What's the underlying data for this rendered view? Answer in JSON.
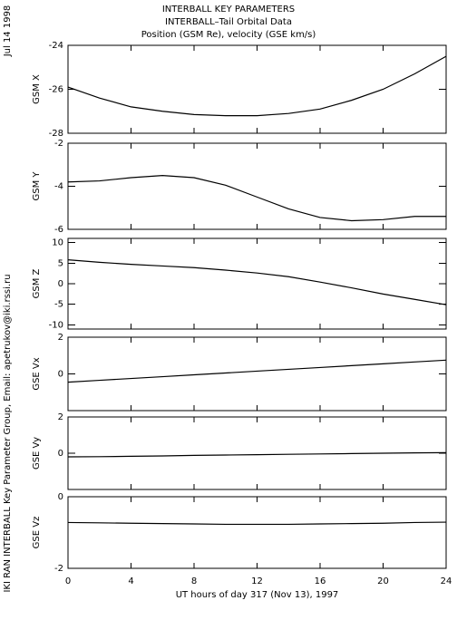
{
  "header": {
    "title": "INTERBALL KEY PARAMETERS",
    "subtitle": "INTERBALL–Tail Orbital Data",
    "subtitle2": "Position (GSM Re), velocity (GSE km/s)",
    "date": "Jul 14 1998",
    "credit": "IKI RAN INTERBALL Key Parameter Group, Email: apetrukov@iki.rssi.ru"
  },
  "chart_data": [
    {
      "type": "line",
      "y_label": "GSM X",
      "x": [
        0,
        2,
        4,
        6,
        8,
        10,
        12,
        14,
        16,
        18,
        20,
        22,
        24
      ],
      "values": [
        -25.9,
        -26.4,
        -26.8,
        -27.0,
        -27.15,
        -27.2,
        -27.2,
        -27.1,
        -26.9,
        -26.5,
        -26.0,
        -25.3,
        -24.5
      ],
      "xlim": [
        0,
        24
      ],
      "ylim": [
        -28,
        -24
      ],
      "yticks": [
        -24,
        -26,
        -28
      ]
    },
    {
      "type": "line",
      "y_label": "GSM Y",
      "x": [
        0,
        2,
        4,
        6,
        8,
        10,
        12,
        14,
        16,
        18,
        20,
        22,
        24
      ],
      "values": [
        -3.8,
        -3.75,
        -3.6,
        -3.5,
        -3.6,
        -3.95,
        -4.5,
        -5.05,
        -5.45,
        -5.6,
        -5.55,
        -5.4,
        -5.4
      ],
      "xlim": [
        0,
        24
      ],
      "ylim": [
        -6,
        -2
      ],
      "yticks": [
        -2,
        -4,
        -6
      ]
    },
    {
      "type": "line",
      "y_label": "GSM Z",
      "x": [
        0,
        2,
        4,
        6,
        8,
        10,
        12,
        14,
        16,
        18,
        20,
        22,
        24
      ],
      "values": [
        5.8,
        5.2,
        4.7,
        4.3,
        3.9,
        3.3,
        2.6,
        1.7,
        0.4,
        -1.0,
        -2.5,
        -3.8,
        -5.1
      ],
      "xlim": [
        0,
        24
      ],
      "ylim": [
        -11,
        11
      ],
      "yticks": [
        10,
        5,
        0,
        -5,
        -10
      ]
    },
    {
      "type": "line",
      "y_label": "GSE Vx",
      "x": [
        0,
        2,
        4,
        6,
        8,
        10,
        12,
        14,
        16,
        18,
        20,
        22,
        24
      ],
      "values": [
        -0.45,
        -0.35,
        -0.25,
        -0.15,
        -0.05,
        0.05,
        0.15,
        0.25,
        0.35,
        0.45,
        0.55,
        0.65,
        0.75
      ],
      "xlim": [
        0,
        24
      ],
      "ylim": [
        -2,
        2
      ],
      "yticks": [
        2,
        0
      ]
    },
    {
      "type": "line",
      "y_label": "GSE Vy",
      "x": [
        0,
        2,
        4,
        6,
        8,
        10,
        12,
        14,
        16,
        18,
        20,
        22,
        24
      ],
      "values": [
        -0.2,
        -0.19,
        -0.17,
        -0.15,
        -0.12,
        -0.1,
        -0.08,
        -0.06,
        -0.04,
        -0.02,
        0,
        0.02,
        0.03
      ],
      "xlim": [
        0,
        24
      ],
      "ylim": [
        -2,
        2
      ],
      "yticks": [
        2,
        0
      ]
    },
    {
      "type": "line",
      "y_label": "GSE Vz",
      "x": [
        0,
        2,
        4,
        6,
        8,
        10,
        12,
        14,
        16,
        18,
        20,
        22,
        24
      ],
      "values": [
        -0.72,
        -0.73,
        -0.74,
        -0.75,
        -0.76,
        -0.77,
        -0.77,
        -0.77,
        -0.76,
        -0.75,
        -0.74,
        -0.72,
        -0.71
      ],
      "xlim": [
        0,
        24
      ],
      "ylim": [
        -2,
        0
      ],
      "yticks": [
        0,
        -2
      ],
      "xticks": [
        0,
        4,
        8,
        12,
        16,
        20,
        24
      ],
      "x_label": "UT hours of day 317 (Nov 13), 1997"
    }
  ]
}
